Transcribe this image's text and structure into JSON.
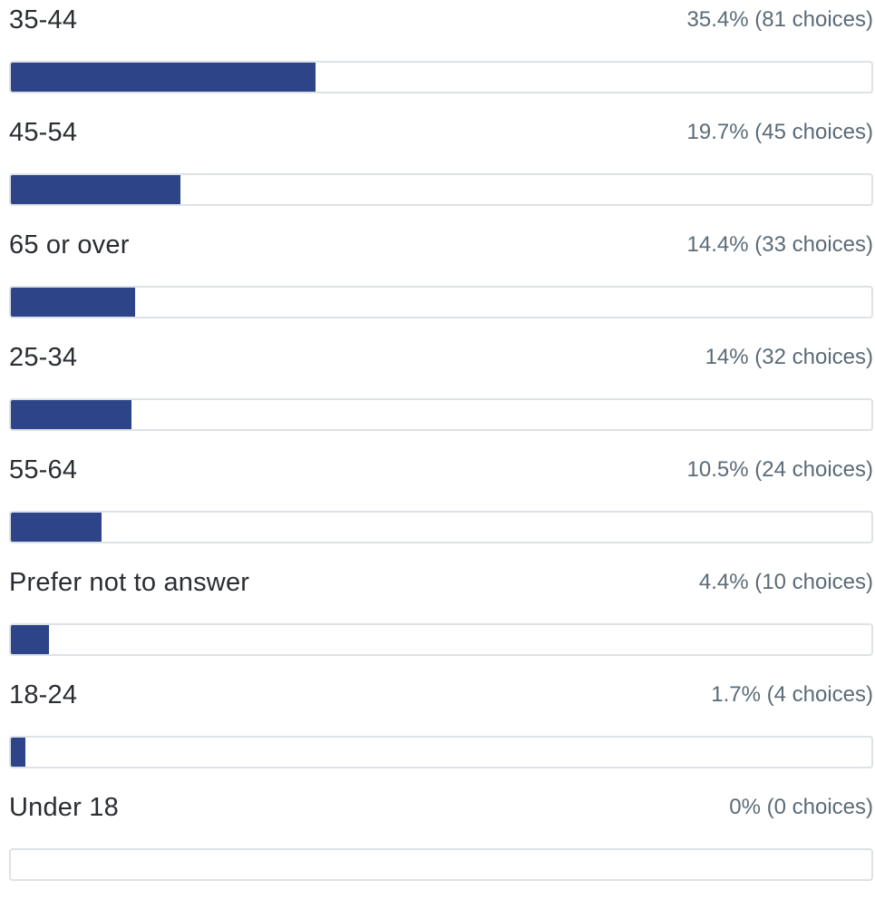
{
  "accent_color": "#2d4489",
  "track_border_color": "#dde2e7",
  "options": [
    {
      "label": "35-44",
      "stat": "35.4% (81 choices)",
      "percent": 35.4
    },
    {
      "label": "45-54",
      "stat": "19.7% (45 choices)",
      "percent": 19.7
    },
    {
      "label": "65 or over",
      "stat": "14.4% (33 choices)",
      "percent": 14.4
    },
    {
      "label": "25-34",
      "stat": "14% (32 choices)",
      "percent": 14
    },
    {
      "label": "55-64",
      "stat": "10.5% (24 choices)",
      "percent": 10.5
    },
    {
      "label": "Prefer not to answer",
      "stat": "4.4% (10 choices)",
      "percent": 4.4
    },
    {
      "label": "18-24",
      "stat": "1.7% (4 choices)",
      "percent": 1.7
    },
    {
      "label": "Under 18",
      "stat": "0% (0 choices)",
      "percent": 0
    }
  ]
}
